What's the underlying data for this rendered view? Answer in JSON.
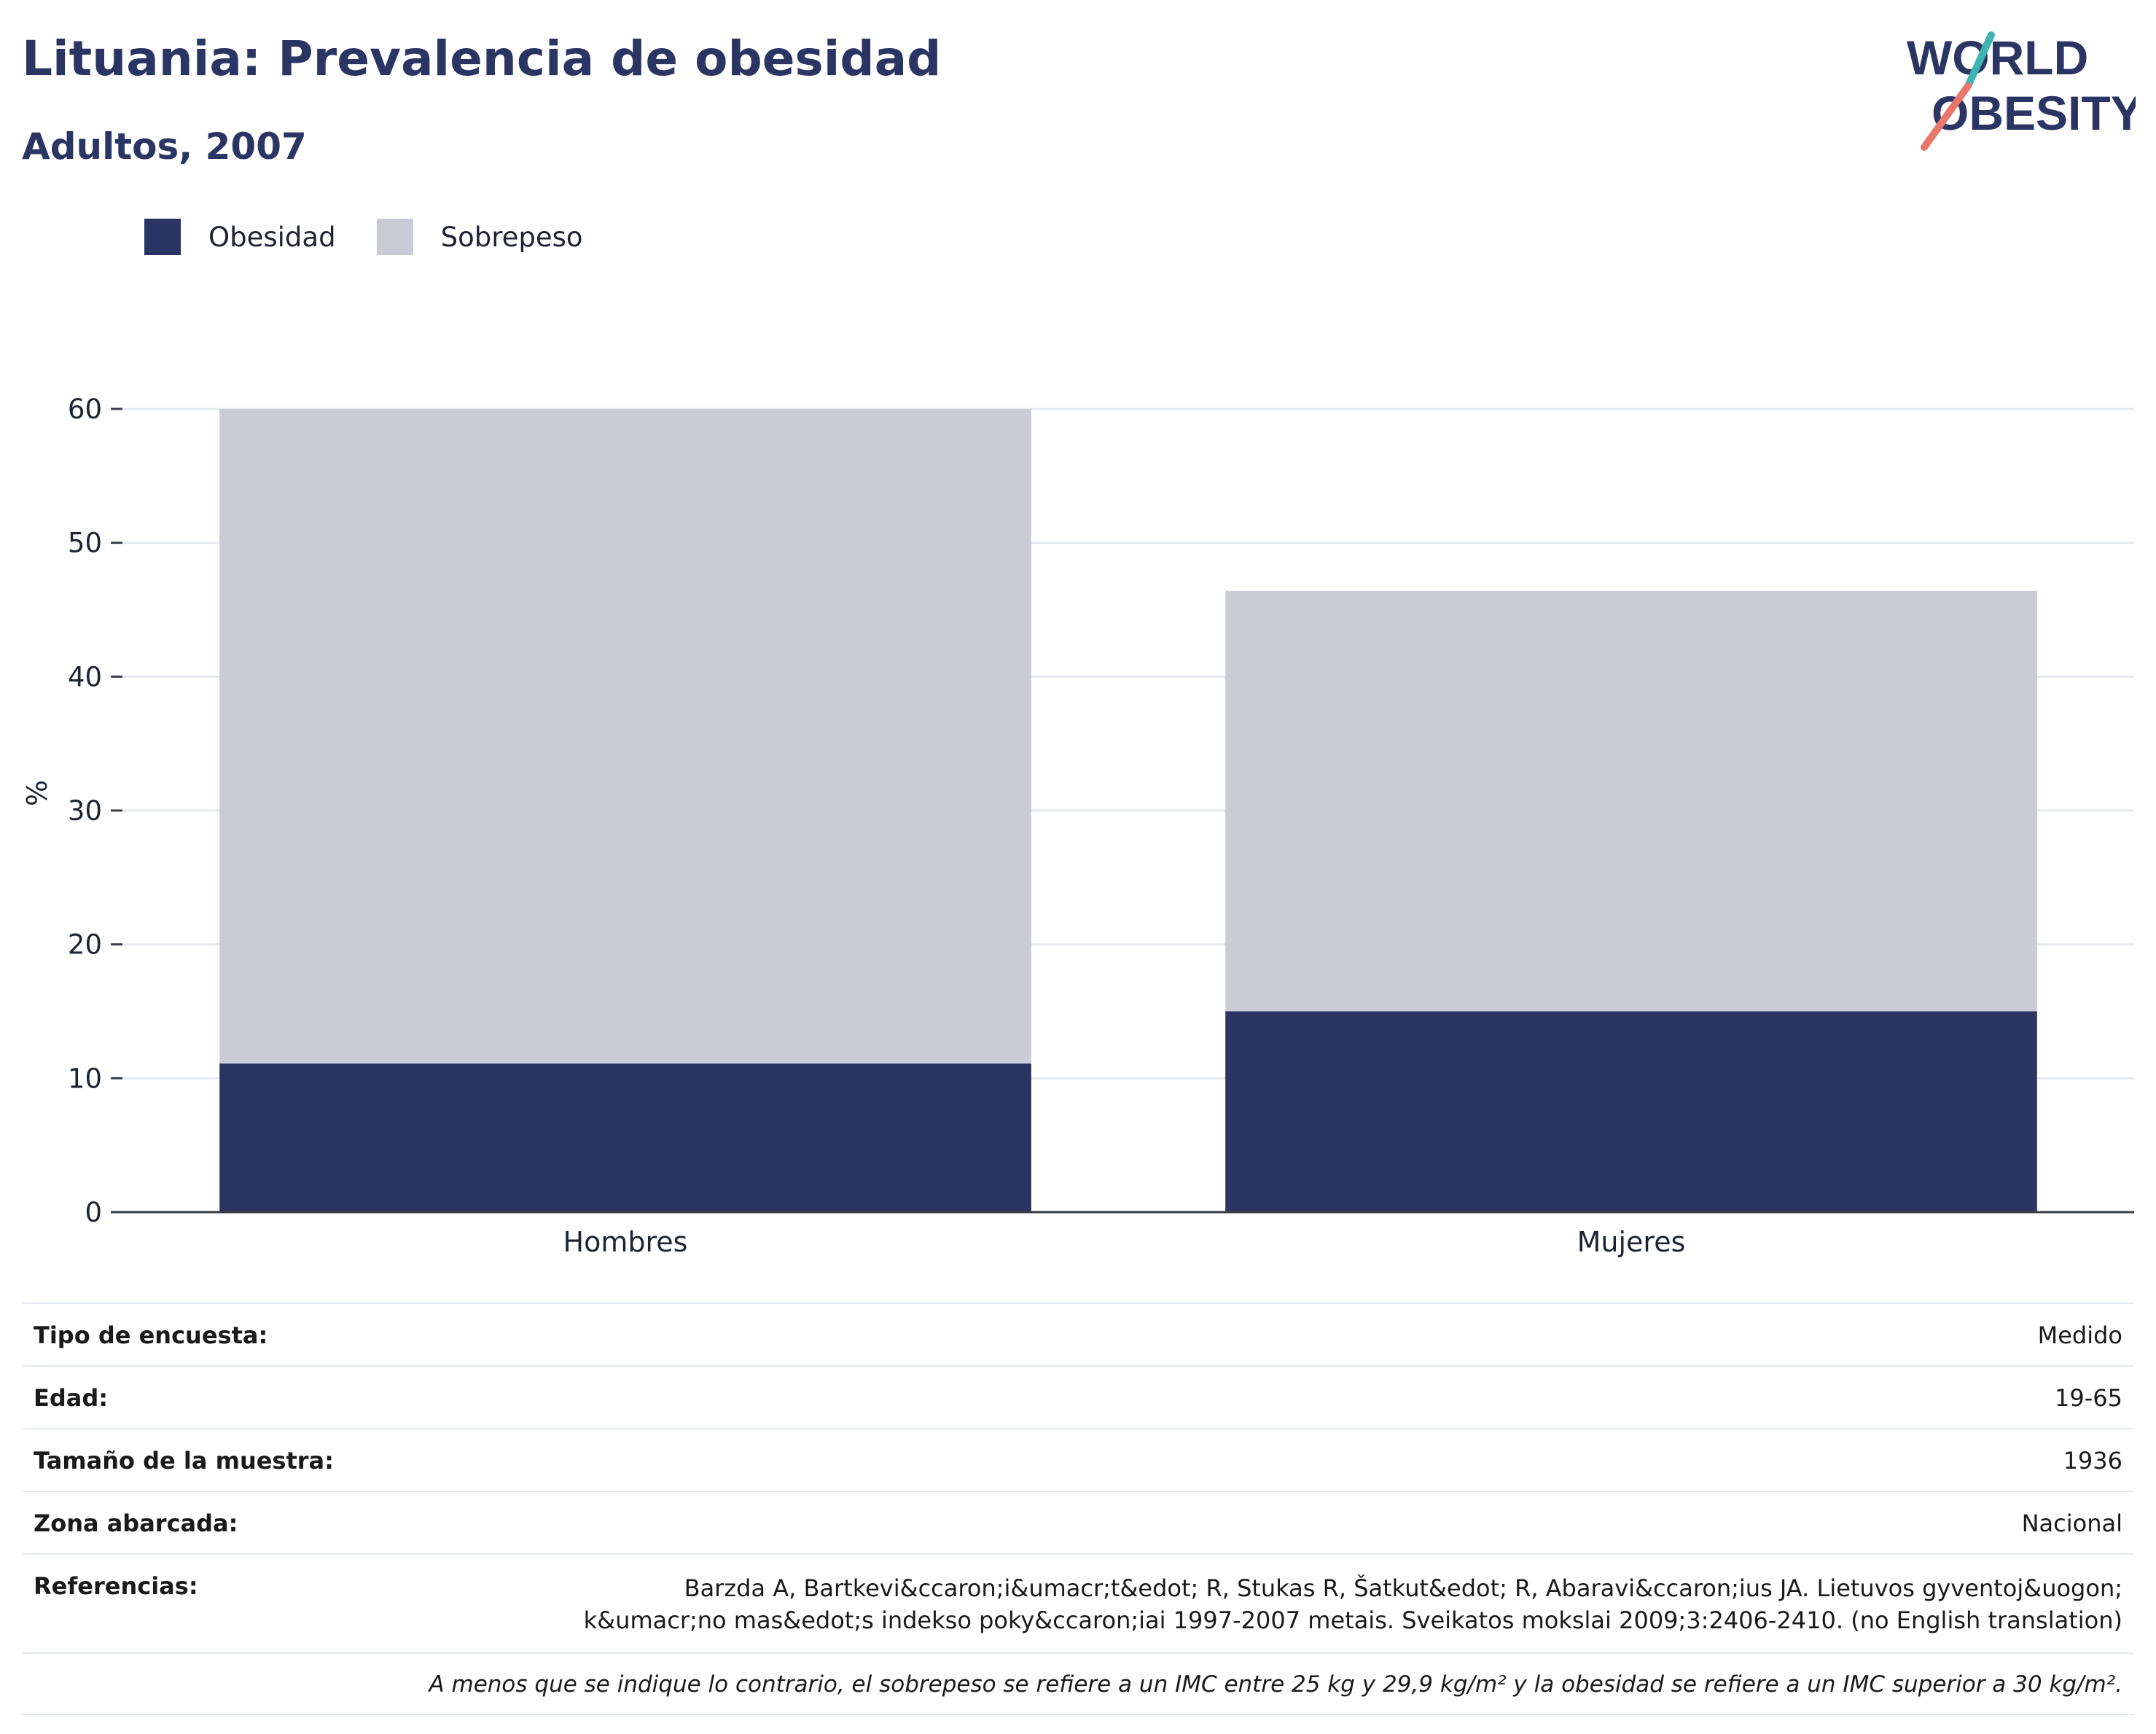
{
  "header": {
    "title": "Lituania: Prevalencia de obesidad",
    "subtitle": "Adultos, 2007",
    "logo": {
      "line1": "WORLD",
      "line2": "OBESITY"
    }
  },
  "colors": {
    "obesidad": "#2a3563",
    "sobrepeso": "#cacbd7",
    "title": "#2a3563",
    "logo_teal": "#3fb5b3",
    "logo_coral": "#e8776a"
  },
  "legend": [
    {
      "label": "Obesidad",
      "color": "#2a3563"
    },
    {
      "label": "Sobrepeso",
      "color": "#cacbd7"
    }
  ],
  "chart_data": {
    "type": "bar",
    "stacked": true,
    "categories": [
      "Hombres",
      "Mujeres"
    ],
    "series": [
      {
        "name": "Obesidad",
        "values": [
          11.1,
          15.0
        ]
      },
      {
        "name": "Sobrepeso",
        "values": [
          48.9,
          31.4
        ]
      }
    ],
    "xlabel": "",
    "ylabel": "%",
    "ylim": [
      0,
      60
    ],
    "yticks": [
      0,
      10,
      20,
      30,
      40,
      50,
      60
    ],
    "grid": true,
    "legend_position": "top-left"
  },
  "info": {
    "rows": [
      {
        "label": "Tipo de encuesta:",
        "value": "Medido"
      },
      {
        "label": "Edad:",
        "value": "19-65"
      },
      {
        "label": "Tamaño de la muestra:",
        "value": "1936"
      },
      {
        "label": "Zona abarcada:",
        "value": "Nacional"
      }
    ],
    "references_label": "Referencias:",
    "references_value": "Barzda A, Bartkevi&ccaron;i&umacr;t&edot; R, Stukas R, Šatkut&edot; R, Abaravi&ccaron;ius JA. Lietuvos gyventoj&uogon; k&umacr;no mas&edot;s indekso poky&ccaron;iai 1997-2007 metais. Sveikatos mokslai 2009;3:2406-2410. (no English translation)",
    "note": "A menos que se indique lo contrario, el sobrepeso se refiere a un IMC entre 25 kg y 29,9 kg/m² y la obesidad se refiere a un IMC superior a 30 kg/m²."
  }
}
